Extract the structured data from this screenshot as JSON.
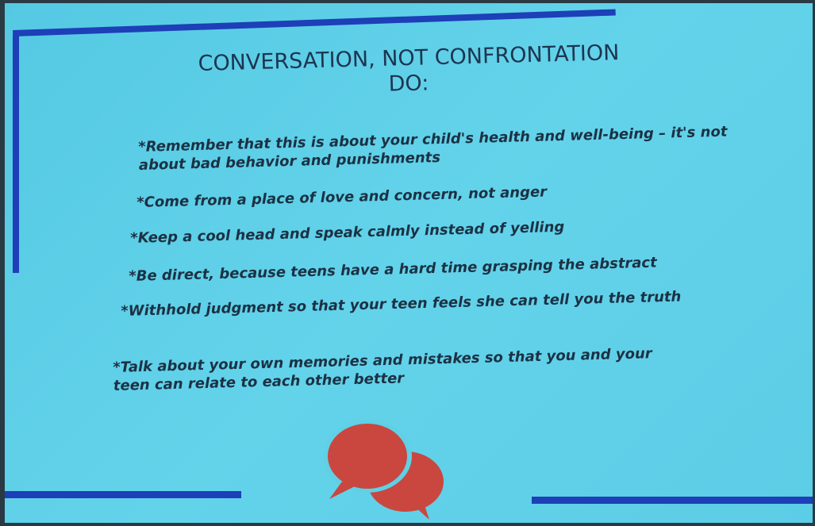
{
  "slide": {
    "title": "CONVERSATION, NOT CONFRONTATION",
    "subtitle": "DO:",
    "bullets": [
      "*Remember that this is about your child's health and well-being – it's not about bad behavior and punishments",
      "*Come from a place of love and concern, not anger",
      "*Keep a cool head and speak calmly instead of yelling",
      "*Be direct, because teens have a hard time grasping the abstract",
      "*Withhold judgment so that your teen feels she can tell you the truth",
      "*Talk about your own memories and mistakes so that you and your teen can relate to each other better"
    ]
  }
}
